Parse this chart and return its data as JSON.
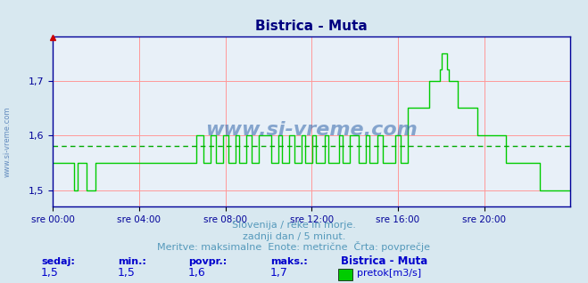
{
  "title": "Bistrica - Muta",
  "title_color": "#000080",
  "bg_color": "#d8e8f0",
  "plot_bg_color": "#e8f0f8",
  "line_color": "#00cc00",
  "avg_line_color": "#00aa00",
  "avg_value": 1.58,
  "ylim": [
    1.47,
    1.78
  ],
  "yticks": [
    1.5,
    1.6,
    1.7
  ],
  "xlabel_times": [
    "sre 00:00",
    "sre 04:00",
    "sre 08:00",
    "sre 12:00",
    "sre 16:00",
    "sre 20:00"
  ],
  "footer_line1": "Slovenija / reke in morje.",
  "footer_line2": "zadnji dan / 5 minut.",
  "footer_line3": "Meritve: maksimalne  Enote: metrične  Črta: povprečje",
  "footer_color": "#5599bb",
  "stat_label_color": "#0000cc",
  "stat_value_color": "#0000cc",
  "legend_title": "Bistrica - Muta",
  "legend_label": "pretok[m3/s]",
  "legend_color": "#00cc00",
  "watermark": "www.si-vreme.com",
  "watermark_color": "#3366aa",
  "vgrid_color": "#ff9999",
  "hgrid_color": "#ff9999",
  "axis_color": "#000099",
  "num_points": 288,
  "data_values": [
    1.55,
    1.55,
    1.55,
    1.55,
    1.55,
    1.55,
    1.55,
    1.55,
    1.55,
    1.55,
    1.55,
    1.55,
    1.5,
    1.5,
    1.55,
    1.55,
    1.55,
    1.55,
    1.55,
    1.5,
    1.5,
    1.5,
    1.5,
    1.5,
    1.55,
    1.55,
    1.55,
    1.55,
    1.55,
    1.55,
    1.55,
    1.55,
    1.55,
    1.55,
    1.55,
    1.55,
    1.55,
    1.55,
    1.55,
    1.55,
    1.55,
    1.55,
    1.55,
    1.55,
    1.55,
    1.55,
    1.55,
    1.55,
    1.55,
    1.55,
    1.55,
    1.55,
    1.55,
    1.55,
    1.55,
    1.55,
    1.55,
    1.55,
    1.55,
    1.55,
    1.55,
    1.55,
    1.55,
    1.55,
    1.55,
    1.55,
    1.55,
    1.55,
    1.55,
    1.55,
    1.55,
    1.55,
    1.55,
    1.55,
    1.55,
    1.55,
    1.55,
    1.55,
    1.55,
    1.55,
    1.6,
    1.6,
    1.6,
    1.6,
    1.55,
    1.55,
    1.55,
    1.55,
    1.6,
    1.6,
    1.6,
    1.55,
    1.55,
    1.55,
    1.55,
    1.6,
    1.6,
    1.6,
    1.55,
    1.55,
    1.55,
    1.55,
    1.6,
    1.6,
    1.55,
    1.55,
    1.55,
    1.55,
    1.6,
    1.6,
    1.6,
    1.55,
    1.55,
    1.55,
    1.55,
    1.6,
    1.6,
    1.6,
    1.6,
    1.6,
    1.6,
    1.6,
    1.55,
    1.55,
    1.55,
    1.55,
    1.6,
    1.6,
    1.55,
    1.55,
    1.55,
    1.55,
    1.6,
    1.6,
    1.6,
    1.55,
    1.55,
    1.55,
    1.55,
    1.6,
    1.6,
    1.55,
    1.55,
    1.55,
    1.55,
    1.6,
    1.6,
    1.55,
    1.55,
    1.55,
    1.55,
    1.55,
    1.6,
    1.6,
    1.55,
    1.55,
    1.55,
    1.55,
    1.55,
    1.55,
    1.6,
    1.6,
    1.55,
    1.55,
    1.55,
    1.55,
    1.6,
    1.6,
    1.6,
    1.6,
    1.6,
    1.55,
    1.55,
    1.55,
    1.55,
    1.6,
    1.6,
    1.55,
    1.55,
    1.55,
    1.55,
    1.6,
    1.6,
    1.6,
    1.55,
    1.55,
    1.55,
    1.55,
    1.55,
    1.55,
    1.55,
    1.6,
    1.6,
    1.6,
    1.55,
    1.55,
    1.55,
    1.55,
    1.65,
    1.65,
    1.65,
    1.65,
    1.65,
    1.65,
    1.65,
    1.65,
    1.65,
    1.65,
    1.65,
    1.65,
    1.7,
    1.7,
    1.7,
    1.7,
    1.7,
    1.7,
    1.72,
    1.75,
    1.75,
    1.75,
    1.72,
    1.7,
    1.7,
    1.7,
    1.7,
    1.7,
    1.65,
    1.65,
    1.65,
    1.65,
    1.65,
    1.65,
    1.65,
    1.65,
    1.65,
    1.65,
    1.65,
    1.6,
    1.6,
    1.6,
    1.6,
    1.6,
    1.6,
    1.6,
    1.6,
    1.6,
    1.6,
    1.6,
    1.6,
    1.6,
    1.6,
    1.6,
    1.6,
    1.55,
    1.55,
    1.55,
    1.55,
    1.55,
    1.55,
    1.55,
    1.55,
    1.55,
    1.55,
    1.55,
    1.55,
    1.55,
    1.55,
    1.55,
    1.55,
    1.55,
    1.55,
    1.55,
    1.5,
    1.5,
    1.5,
    1.5,
    1.5,
    1.5,
    1.5,
    1.5,
    1.5,
    1.5,
    1.5,
    1.5,
    1.5,
    1.5,
    1.5,
    1.5,
    1.5,
    1.5
  ]
}
